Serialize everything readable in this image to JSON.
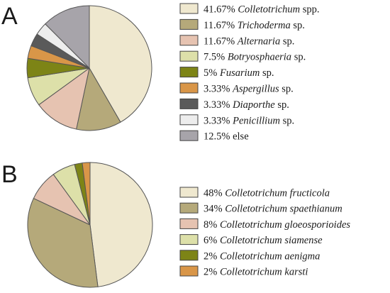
{
  "chart_data": [
    {
      "type": "pie",
      "panel_label": "A",
      "categories": [
        "Colletotrichum spp.",
        "Trichoderma sp.",
        "Alternaria sp.",
        "Botryosphaeria sp.",
        "Fusarium sp.",
        "Aspergillus sp.",
        "Diaporthe sp.",
        "Penicillium sp.",
        "else"
      ],
      "values": [
        41.67,
        11.67,
        11.67,
        7.5,
        5,
        3.33,
        3.33,
        3.33,
        12.5
      ],
      "colors": [
        "#efe8cf",
        "#b5a97a",
        "#e6c3b1",
        "#dde0a9",
        "#7d8416",
        "#d99648",
        "#5a5a5a",
        "#ededed",
        "#a7a4aa"
      ],
      "legend": [
        {
          "pct": "41.67%",
          "name": "Colletotrichum",
          "suffix": "spp."
        },
        {
          "pct": "11.67%",
          "name": "Trichoderma",
          "suffix": "sp."
        },
        {
          "pct": "11.67%",
          "name": "Alternaria",
          "suffix": "sp."
        },
        {
          "pct": "7.5%",
          "name": "Botryosphaeria",
          "suffix": "sp."
        },
        {
          "pct": "5%",
          "name": "Fusarium",
          "suffix": "sp."
        },
        {
          "pct": "3.33%",
          "name": "Aspergillus",
          "suffix": "sp."
        },
        {
          "pct": "3.33%",
          "name": "Diaporthe",
          "suffix": "sp."
        },
        {
          "pct": "3.33%",
          "name": "Penicillium",
          "suffix": "sp."
        },
        {
          "pct": "12.5%",
          "name": "",
          "suffix": "else"
        }
      ],
      "start_angle": "12 o'clock",
      "direction": "clockwise",
      "legend_placement": "right"
    },
    {
      "type": "pie",
      "panel_label": "B",
      "categories": [
        "Colletotrichum fructicola",
        "Colletotrichum spaethianum",
        "Colletotrichum gloeosporioides",
        "Colletotrichum siamense",
        "Colletotrichum aenigma",
        "Colletotrichum karsti"
      ],
      "values": [
        48,
        34,
        8,
        6,
        2,
        2
      ],
      "colors": [
        "#efe8cf",
        "#b5a97a",
        "#e6c3b1",
        "#dde0a9",
        "#7d8416",
        "#d99648"
      ],
      "legend": [
        {
          "pct": "48%",
          "name": "Colletotrichum fructicola",
          "suffix": ""
        },
        {
          "pct": "34%",
          "name": "Colletotrichum spaethianum",
          "suffix": ""
        },
        {
          "pct": "8%",
          "name": "Colletotrichum gloeosporioides",
          "suffix": ""
        },
        {
          "pct": "6%",
          "name": "Colletotrichum siamense",
          "suffix": ""
        },
        {
          "pct": "2%",
          "name": "Colletotrichum aenigma",
          "suffix": ""
        },
        {
          "pct": "2%",
          "name": "Colletotrichum karsti",
          "suffix": ""
        }
      ],
      "start_angle": "12 o'clock",
      "direction": "clockwise",
      "legend_placement": "right"
    }
  ],
  "style": {
    "outline_color": "#555555",
    "legend_swatch_border": "#444444"
  }
}
